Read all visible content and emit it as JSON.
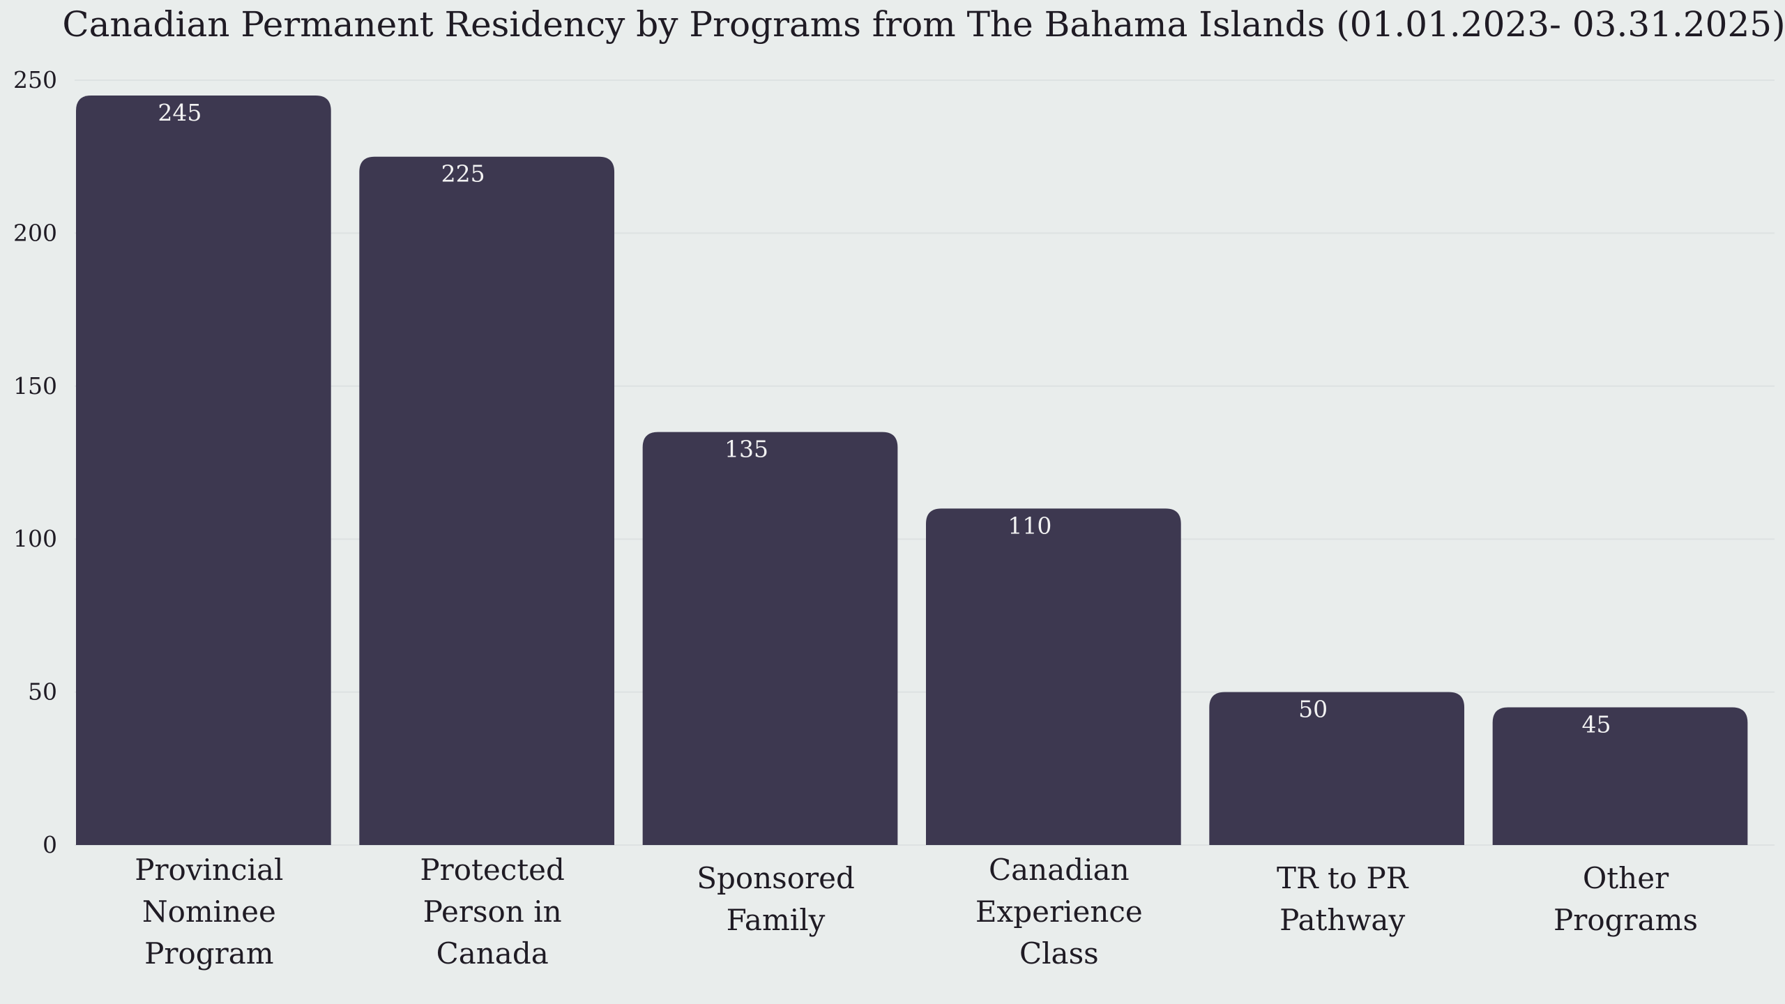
{
  "chart_data": {
    "type": "bar",
    "title": "Canadian Permanent Residency by Programs from The Bahama Islands (01.01.2023- 03.31.2025)",
    "xlabel": "",
    "ylabel": "",
    "categories": [
      "Provincial Nominee Program",
      "Protected Person in Canada",
      "Sponsored Family",
      "Canadian Experience Class",
      "TR to PR Pathway",
      "Other Programs"
    ],
    "category_lines": [
      [
        "Provincial",
        "Nominee",
        "Program"
      ],
      [
        "Protected",
        "Person in",
        "Canada"
      ],
      [
        "Sponsored",
        "Family"
      ],
      [
        "Canadian",
        "Experience",
        "Class"
      ],
      [
        "TR to PR",
        "Pathway"
      ],
      [
        "Other",
        "Programs"
      ]
    ],
    "values": [
      245,
      225,
      135,
      110,
      50,
      45
    ],
    "data_labels": [
      "245",
      "225",
      "135",
      "110",
      "50",
      "45"
    ],
    "ylim": [
      0,
      250
    ],
    "yticks": [
      0,
      50,
      100,
      150,
      200,
      250
    ],
    "ytick_labels": [
      "0",
      "50",
      "100",
      "150",
      "200",
      "250"
    ],
    "grid": true,
    "legend": "none",
    "colors": {
      "bar": "#3D3850",
      "background": "#E9EDEC",
      "grid": "#DDE2E2",
      "text": "#1F1B24",
      "value_label": "#F2F2F2"
    }
  }
}
